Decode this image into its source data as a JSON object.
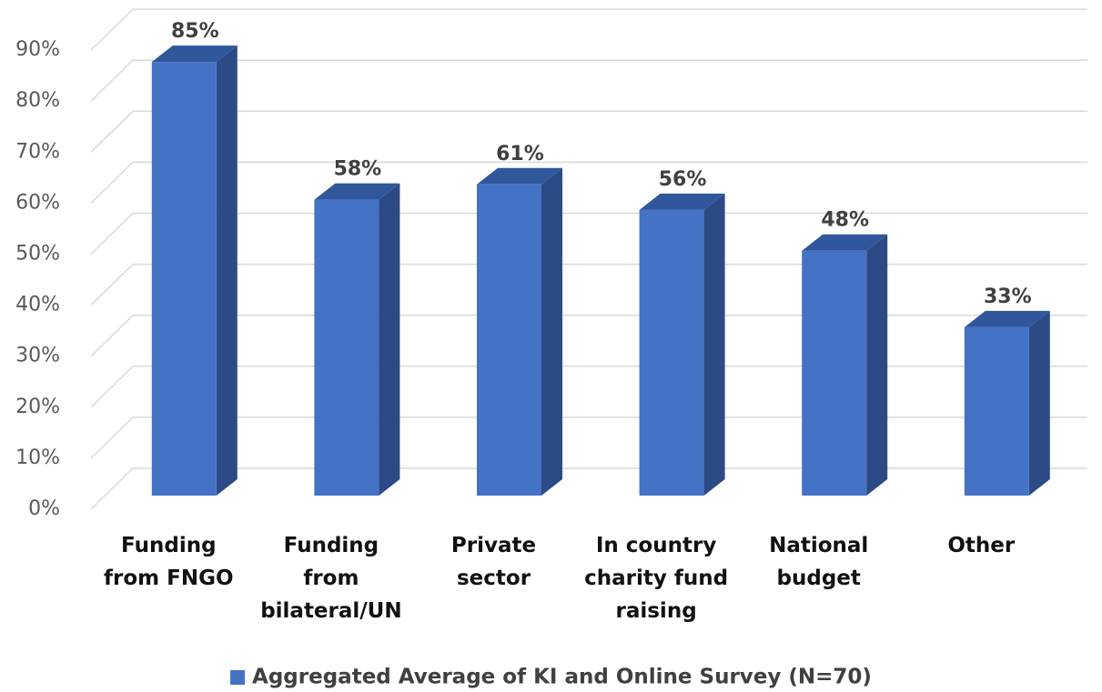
{
  "chart_data": {
    "type": "bar3d",
    "categories": [
      "Funding\nfrom FNGO",
      "Funding\nfrom\nbilateral/UN",
      "Private\nsector",
      "In country\ncharity fund\nraising",
      "National\nbudget",
      "Other"
    ],
    "series": [
      {
        "name": "Aggregated Average of KI and Online Survey (N=70)",
        "color": "#4472c4",
        "values": [
          85,
          58,
          61,
          56,
          48,
          33
        ],
        "value_labels": [
          "85%",
          "58%",
          "61%",
          "56%",
          "48%",
          "33%"
        ]
      }
    ],
    "ylim": [
      0,
      90
    ],
    "yticks": [
      {
        "value": 0,
        "label": "0%"
      },
      {
        "value": 10,
        "label": "10%"
      },
      {
        "value": 20,
        "label": "20%"
      },
      {
        "value": 30,
        "label": "30%"
      },
      {
        "value": 40,
        "label": "40%"
      },
      {
        "value": 50,
        "label": "50%"
      },
      {
        "value": 60,
        "label": "60%"
      },
      {
        "value": 70,
        "label": "70%"
      },
      {
        "value": 80,
        "label": "80%"
      },
      {
        "value": 90,
        "label": "90%"
      }
    ],
    "grid": true,
    "legend": "bottom"
  }
}
